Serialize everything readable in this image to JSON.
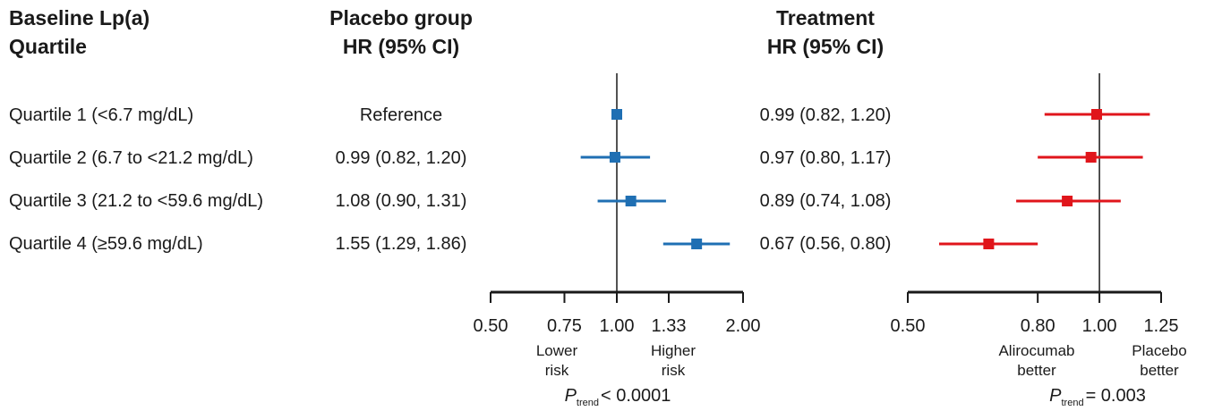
{
  "headers": {
    "baseline_line1": "Baseline Lp(a)",
    "baseline_line2": "Quartile",
    "placebo_line1": "Placebo group",
    "placebo_line2": "HR (95% CI)",
    "treatment_line1": "Treatment",
    "treatment_line2": "HR (95% CI)"
  },
  "rows": [
    {
      "label": "Quartile 1 (<6.7 mg/dL)",
      "placebo_text": "Reference",
      "treatment_text": "0.99 (0.82, 1.20)"
    },
    {
      "label": "Quartile 2 (6.7 to <21.2 mg/dL)",
      "placebo_text": "0.99 (0.82, 1.20)",
      "treatment_text": "0.97 (0.80, 1.17)"
    },
    {
      "label": "Quartile 3 (21.2 to <59.6 mg/dL)",
      "placebo_text": "1.08 (0.90, 1.31)",
      "treatment_text": "0.89 (0.74, 1.08)"
    },
    {
      "label": "Quartile 4 (≥59.6 mg/dL)",
      "placebo_text": "1.55 (1.29, 1.86)",
      "treatment_text": "0.67 (0.56, 0.80)"
    }
  ],
  "footers": {
    "placebo_p_symbol": "P",
    "placebo_p_sub": "trend",
    "placebo_p_value": "< 0.0001",
    "treatment_p_symbol": "P",
    "treatment_p_sub": "trend",
    "treatment_p_value": "= 0.003"
  },
  "chart_data": [
    {
      "type": "forest",
      "scale": "log",
      "xlim": [
        0.5,
        2.0
      ],
      "reference_line": 1.0,
      "ticks": [
        0.5,
        0.75,
        1.0,
        1.33,
        2.0
      ],
      "tick_labels": [
        "0.50",
        "0.75",
        "1.00",
        "1.33",
        "2.00"
      ],
      "direction_labels": {
        "left": [
          "Lower",
          "risk"
        ],
        "right": [
          "Higher",
          "risk"
        ]
      },
      "color": "#1f6fb3",
      "series": [
        {
          "hr": 1.0,
          "lo": null,
          "hi": null
        },
        {
          "hr": 0.99,
          "lo": 0.82,
          "hi": 1.2
        },
        {
          "hr": 1.08,
          "lo": 0.9,
          "hi": 1.31
        },
        {
          "hr": 1.55,
          "lo": 1.29,
          "hi": 1.86
        }
      ]
    },
    {
      "type": "forest",
      "scale": "log",
      "xlim": [
        0.5,
        1.25
      ],
      "reference_line": 1.0,
      "ticks": [
        0.5,
        0.8,
        1.0,
        1.25
      ],
      "tick_labels": [
        "0.50",
        "0.80",
        "1.00",
        "1.25"
      ],
      "direction_labels": {
        "left": [
          "Alirocumab",
          "better"
        ],
        "right": [
          "Placebo",
          "better"
        ]
      },
      "color": "#e0151b",
      "series": [
        {
          "hr": 0.99,
          "lo": 0.82,
          "hi": 1.2
        },
        {
          "hr": 0.97,
          "lo": 0.8,
          "hi": 1.17
        },
        {
          "hr": 0.89,
          "lo": 0.74,
          "hi": 1.08
        },
        {
          "hr": 0.67,
          "lo": 0.56,
          "hi": 0.8
        }
      ]
    }
  ]
}
